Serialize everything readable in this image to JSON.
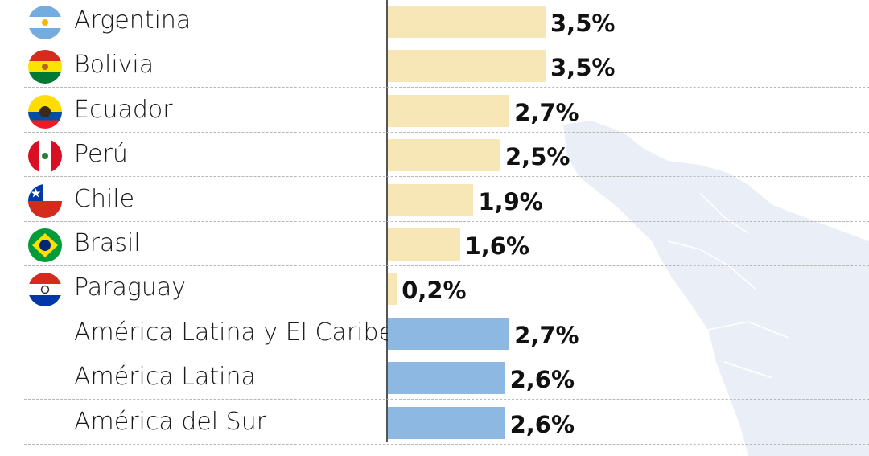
{
  "chart_data": {
    "type": "bar",
    "orientation": "horizontal",
    "categories": [
      "Argentina",
      "Bolivia",
      "Ecuador",
      "Perú",
      "Chile",
      "Brasil",
      "Paraguay",
      "América Latina y El Caribe",
      "América Latina",
      "América del Sur"
    ],
    "values": [
      3.5,
      3.5,
      2.7,
      2.5,
      1.9,
      1.6,
      0.2,
      2.7,
      2.6,
      2.6
    ],
    "value_labels": [
      "3,5%",
      "3,5%",
      "2,7%",
      "2,5%",
      "1,9%",
      "1,6%",
      "0,2%",
      "2,7%",
      "2,6%",
      "2,6%"
    ],
    "flags": [
      "argentina-flag",
      "bolivia-flag",
      "ecuador-flag",
      "peru-flag",
      "chile-flag",
      "brazil-flag",
      "paraguay-flag",
      null,
      null,
      null
    ],
    "bar_colors": [
      "#f8e7b6",
      "#f8e7b6",
      "#f8e7b6",
      "#f8e7b6",
      "#f8e7b6",
      "#f8e7b6",
      "#f8e7b6",
      "#8db8e2",
      "#8db8e2",
      "#8db8e2"
    ],
    "grid": true,
    "background_map_color": "#eaeff7"
  }
}
